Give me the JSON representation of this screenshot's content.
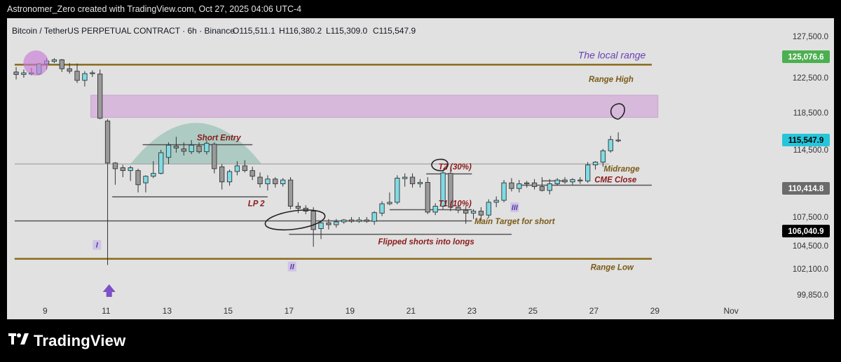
{
  "header": {
    "attribution": "Astronomer_Zero created with TradingView.com, Oct 27, 2025 04:06 UTC-4"
  },
  "legend": {
    "symbol": "Bitcoin / TetherUS PERPETUAL CONTRACT · 6h · Binance",
    "open": "O115,511.1",
    "high": "H116,380.2",
    "low": "L115,309.0",
    "close": "C115,547.9"
  },
  "footer": {
    "brand": "TradingView"
  },
  "colors": {
    "bull": "#7fdbe4",
    "bear": "#9a9a9a",
    "range_line": "#8a6a1a",
    "zone_fill": "#d7b9db",
    "dome": "#a9c9c0",
    "level_line": "#6a6a6a",
    "label_brown": "#7a5a18",
    "label_red": "#8b1a1a",
    "label_purple": "#6a3fb5"
  },
  "chart_data": {
    "type": "candlestick",
    "timeframe": "6h",
    "x_tick_labels": [
      "9",
      "11",
      "13",
      "15",
      "17",
      "19",
      "21",
      "23",
      "25",
      "27",
      "29",
      "Nov"
    ],
    "y_tick_labels": [
      "127,500.0",
      "122,500.0",
      "118,500.0",
      "114,500.0",
      "107,500.0",
      "104,500.0",
      "102,100.0",
      "99,850.0"
    ],
    "y_range": [
      99000,
      128500
    ],
    "price_badges": [
      {
        "value": "125,076.6",
        "color": "#4caf50",
        "text_color": "#ffffff"
      },
      {
        "value": "115,547.9",
        "color": "#26c6da",
        "text_color": "#000000"
      },
      {
        "value": "110,414.8",
        "color": "#6b6b6b",
        "text_color": "#ffffff"
      },
      {
        "value": "106,040.9",
        "color": "#000000",
        "text_color": "#ffffff"
      }
    ],
    "levels": [
      {
        "name": "Range High",
        "price": 124100,
        "x0": 8.0,
        "x1": 28.9,
        "style": "range"
      },
      {
        "name": "Range Low",
        "price": 103150,
        "x0": 8.0,
        "x1": 28.9,
        "style": "range"
      },
      {
        "name": "Midrange",
        "price": 113000,
        "x0": 8.0,
        "x1": 27.5,
        "style": "gray"
      },
      {
        "name": "Short Entry",
        "price": 115050,
        "x0": 12.2,
        "x1": 15.8,
        "style": "dark"
      },
      {
        "name": "LP 2",
        "price": 109550,
        "x0": 11.2,
        "x1": 16.3,
        "style": "dark"
      },
      {
        "name": "support",
        "price": 107100,
        "x0": 8.0,
        "x1": 23.0,
        "style": "dark"
      },
      {
        "name": "Flipped shorts into longs",
        "price": 105700,
        "x0": 17.0,
        "x1": 24.3,
        "style": "dark"
      },
      {
        "name": "T2 (30%)",
        "price": 111950,
        "x0": 21.5,
        "x1": 23.0,
        "style": "dark"
      },
      {
        "name": "T1 (10%)",
        "price": 108250,
        "x0": 20.3,
        "x1": 23.0,
        "style": "dark"
      },
      {
        "name": "CME Close",
        "price": 110750,
        "x0": 24.5,
        "x1": 28.9,
        "style": "dark"
      },
      {
        "name": "cme-small",
        "price": 111200,
        "x0": 25.3,
        "x1": 26.0,
        "style": "dark"
      }
    ],
    "zones": [
      {
        "name": "supply-zone",
        "x0": 10.5,
        "x1": 29.1,
        "y0": 118000,
        "y1": 120500
      }
    ],
    "annotations": [
      {
        "text": "The local range",
        "x": 28.7,
        "price": 125200,
        "color": "purple",
        "size": 14,
        "anchor": "end"
      },
      {
        "text": "Range High",
        "x": 28.3,
        "price": 122350,
        "color": "brown",
        "size": 11.5,
        "anchor": "end"
      },
      {
        "text": "Short Entry",
        "x": 14.7,
        "price": 115800,
        "color": "red",
        "size": 11.5,
        "anchor": "middle"
      },
      {
        "text": "Midrange",
        "x": 28.5,
        "price": 112500,
        "color": "brown",
        "size": 11.5,
        "anchor": "end"
      },
      {
        "text": "CME Close",
        "x": 28.4,
        "price": 111350,
        "color": "red",
        "size": 11.5,
        "anchor": "end"
      },
      {
        "text": "T2 (30%)",
        "x": 21.9,
        "price": 112700,
        "color": "red",
        "size": 11.5,
        "anchor": "start"
      },
      {
        "text": "LP 2",
        "x": 16.2,
        "price": 108900,
        "color": "red",
        "size": 11.5,
        "anchor": "end"
      },
      {
        "text": "T1 (10%)",
        "x": 21.9,
        "price": 108900,
        "color": "red",
        "size": 11.5,
        "anchor": "start"
      },
      {
        "text": "Main Target for short",
        "x": 24.4,
        "price": 107050,
        "color": "brown",
        "size": 11.5,
        "anchor": "middle"
      },
      {
        "text": "Flipped shorts into longs",
        "x": 21.5,
        "price": 104950,
        "color": "red",
        "size": 11.5,
        "anchor": "middle"
      },
      {
        "text": "Range Low",
        "x": 28.3,
        "price": 102300,
        "color": "brown",
        "size": 11.5,
        "anchor": "end"
      }
    ],
    "wave_labels": [
      {
        "text": "I",
        "x": 10.7,
        "price": 104450
      },
      {
        "text": "II",
        "x": 17.1,
        "price": 102200
      },
      {
        "text": "III",
        "x": 24.4,
        "price": 108350
      }
    ],
    "candles": [
      {
        "t": 8.05,
        "o": 123200,
        "h": 123800,
        "l": 122300,
        "c": 122900
      },
      {
        "t": 8.3,
        "o": 122900,
        "h": 123500,
        "l": 122500,
        "c": 123100
      },
      {
        "t": 8.55,
        "o": 123100,
        "h": 123700,
        "l": 122800,
        "c": 122950
      },
      {
        "t": 8.8,
        "o": 122950,
        "h": 124300,
        "l": 122800,
        "c": 124200
      },
      {
        "t": 9.05,
        "o": 124200,
        "h": 124900,
        "l": 123500,
        "c": 124550
      },
      {
        "t": 9.3,
        "o": 124500,
        "h": 124900,
        "l": 124300,
        "c": 124700
      },
      {
        "t": 9.55,
        "o": 124700,
        "h": 124800,
        "l": 123200,
        "c": 123600
      },
      {
        "t": 9.8,
        "o": 123600,
        "h": 124300,
        "l": 123000,
        "c": 123300
      },
      {
        "t": 10.05,
        "o": 123300,
        "h": 124250,
        "l": 121900,
        "c": 122200
      },
      {
        "t": 10.3,
        "o": 122200,
        "h": 123300,
        "l": 121500,
        "c": 123000
      },
      {
        "t": 10.55,
        "o": 123050,
        "h": 123400,
        "l": 122600,
        "c": 123100
      },
      {
        "t": 10.8,
        "o": 122950,
        "h": 123500,
        "l": 117800,
        "c": 117900
      },
      {
        "t": 11.05,
        "o": 117600,
        "h": 117800,
        "l": 102500,
        "c": 113100
      },
      {
        "t": 11.3,
        "o": 113100,
        "h": 113200,
        "l": 110800,
        "c": 112500
      },
      {
        "t": 11.55,
        "o": 112600,
        "h": 112900,
        "l": 111600,
        "c": 112300
      },
      {
        "t": 11.8,
        "o": 112300,
        "h": 112800,
        "l": 111200,
        "c": 112600
      },
      {
        "t": 12.05,
        "o": 112300,
        "h": 112500,
        "l": 110000,
        "c": 110800
      },
      {
        "t": 12.3,
        "o": 111000,
        "h": 111800,
        "l": 110000,
        "c": 111700
      },
      {
        "t": 12.55,
        "o": 111700,
        "h": 113300,
        "l": 111500,
        "c": 112000
      },
      {
        "t": 12.8,
        "o": 112000,
        "h": 114500,
        "l": 111900,
        "c": 114200
      },
      {
        "t": 13.05,
        "o": 113700,
        "h": 115300,
        "l": 113000,
        "c": 115000
      },
      {
        "t": 13.3,
        "o": 114900,
        "h": 115900,
        "l": 114200,
        "c": 114700
      },
      {
        "t": 13.55,
        "o": 114600,
        "h": 115300,
        "l": 113900,
        "c": 114350
      },
      {
        "t": 13.8,
        "o": 114300,
        "h": 115550,
        "l": 114050,
        "c": 115000
      },
      {
        "t": 14.05,
        "o": 114900,
        "h": 115300,
        "l": 114100,
        "c": 114300
      },
      {
        "t": 14.3,
        "o": 114300,
        "h": 115500,
        "l": 114000,
        "c": 115200
      },
      {
        "t": 14.55,
        "o": 115100,
        "h": 115300,
        "l": 112000,
        "c": 112500
      },
      {
        "t": 14.8,
        "o": 112700,
        "h": 113000,
        "l": 110300,
        "c": 111100
      },
      {
        "t": 15.05,
        "o": 111100,
        "h": 112400,
        "l": 110700,
        "c": 112200
      },
      {
        "t": 15.3,
        "o": 112200,
        "h": 113300,
        "l": 111800,
        "c": 112800
      },
      {
        "t": 15.55,
        "o": 112800,
        "h": 113400,
        "l": 112100,
        "c": 112300
      },
      {
        "t": 15.8,
        "o": 112300,
        "h": 112700,
        "l": 111300,
        "c": 111700
      },
      {
        "t": 16.05,
        "o": 111600,
        "h": 112100,
        "l": 110500,
        "c": 110900
      },
      {
        "t": 16.3,
        "o": 110900,
        "h": 111800,
        "l": 110200,
        "c": 111400
      },
      {
        "t": 16.55,
        "o": 111400,
        "h": 111600,
        "l": 110500,
        "c": 110900
      },
      {
        "t": 16.8,
        "o": 110900,
        "h": 111500,
        "l": 110600,
        "c": 111300
      },
      {
        "t": 17.05,
        "o": 111300,
        "h": 111600,
        "l": 108300,
        "c": 108600
      },
      {
        "t": 17.3,
        "o": 108600,
        "h": 109000,
        "l": 107900,
        "c": 108400
      },
      {
        "t": 17.55,
        "o": 108400,
        "h": 108700,
        "l": 107800,
        "c": 108100
      },
      {
        "t": 17.8,
        "o": 108100,
        "h": 108500,
        "l": 104400,
        "c": 106200
      },
      {
        "t": 18.05,
        "o": 106300,
        "h": 107100,
        "l": 105200,
        "c": 106900
      },
      {
        "t": 18.3,
        "o": 106900,
        "h": 107300,
        "l": 106200,
        "c": 106700
      },
      {
        "t": 18.55,
        "o": 106700,
        "h": 107300,
        "l": 106400,
        "c": 107000
      },
      {
        "t": 18.8,
        "o": 107000,
        "h": 107300,
        "l": 106800,
        "c": 107200
      },
      {
        "t": 19.05,
        "o": 107200,
        "h": 107500,
        "l": 106900,
        "c": 107050
      },
      {
        "t": 19.3,
        "o": 107050,
        "h": 107500,
        "l": 106900,
        "c": 107200
      },
      {
        "t": 19.55,
        "o": 107200,
        "h": 107500,
        "l": 106900,
        "c": 107050
      },
      {
        "t": 19.8,
        "o": 107050,
        "h": 108100,
        "l": 106700,
        "c": 107950
      },
      {
        "t": 20.05,
        "o": 107900,
        "h": 109100,
        "l": 107600,
        "c": 108850
      },
      {
        "t": 20.3,
        "o": 108850,
        "h": 110000,
        "l": 108700,
        "c": 109000
      },
      {
        "t": 20.55,
        "o": 109000,
        "h": 111800,
        "l": 108800,
        "c": 111500
      },
      {
        "t": 20.8,
        "o": 111450,
        "h": 112000,
        "l": 110600,
        "c": 111600
      },
      {
        "t": 21.05,
        "o": 111600,
        "h": 112000,
        "l": 110500,
        "c": 110900
      },
      {
        "t": 21.3,
        "o": 110900,
        "h": 111400,
        "l": 110500,
        "c": 111050
      },
      {
        "t": 21.55,
        "o": 111050,
        "h": 111600,
        "l": 107800,
        "c": 108000
      },
      {
        "t": 21.8,
        "o": 108000,
        "h": 108900,
        "l": 107700,
        "c": 108600
      },
      {
        "t": 22.05,
        "o": 108600,
        "h": 112300,
        "l": 108300,
        "c": 112050
      },
      {
        "t": 22.3,
        "o": 112000,
        "h": 112600,
        "l": 108100,
        "c": 108500
      },
      {
        "t": 22.55,
        "o": 108500,
        "h": 108700,
        "l": 107900,
        "c": 108200
      },
      {
        "t": 22.8,
        "o": 108200,
        "h": 108600,
        "l": 106800,
        "c": 107900
      },
      {
        "t": 23.05,
        "o": 107900,
        "h": 108300,
        "l": 107300,
        "c": 108100
      },
      {
        "t": 23.3,
        "o": 108100,
        "h": 108500,
        "l": 107100,
        "c": 107700
      },
      {
        "t": 23.55,
        "o": 107700,
        "h": 109300,
        "l": 107400,
        "c": 109000
      },
      {
        "t": 23.8,
        "o": 109000,
        "h": 109600,
        "l": 108500,
        "c": 109200
      },
      {
        "t": 24.05,
        "o": 109200,
        "h": 111300,
        "l": 109000,
        "c": 111000
      },
      {
        "t": 24.3,
        "o": 111000,
        "h": 111500,
        "l": 110100,
        "c": 110400
      },
      {
        "t": 24.55,
        "o": 110400,
        "h": 111300,
        "l": 110000,
        "c": 110900
      },
      {
        "t": 24.8,
        "o": 110900,
        "h": 111200,
        "l": 110500,
        "c": 111000
      },
      {
        "t": 25.05,
        "o": 111000,
        "h": 111400,
        "l": 110300,
        "c": 110600
      },
      {
        "t": 25.3,
        "o": 110600,
        "h": 111600,
        "l": 110100,
        "c": 110200
      },
      {
        "t": 25.55,
        "o": 110200,
        "h": 111400,
        "l": 109800,
        "c": 110900
      },
      {
        "t": 25.8,
        "o": 110900,
        "h": 111500,
        "l": 110700,
        "c": 111300
      },
      {
        "t": 26.05,
        "o": 111300,
        "h": 111600,
        "l": 110900,
        "c": 111100
      },
      {
        "t": 26.3,
        "o": 111100,
        "h": 111500,
        "l": 110800,
        "c": 111350
      },
      {
        "t": 26.55,
        "o": 111300,
        "h": 111600,
        "l": 110900,
        "c": 111200
      },
      {
        "t": 26.8,
        "o": 111200,
        "h": 113200,
        "l": 111000,
        "c": 112900
      },
      {
        "t": 27.05,
        "o": 112900,
        "h": 113300,
        "l": 112400,
        "c": 113200
      },
      {
        "t": 27.3,
        "o": 113200,
        "h": 114600,
        "l": 112700,
        "c": 114400
      },
      {
        "t": 27.55,
        "o": 114400,
        "h": 116000,
        "l": 114200,
        "c": 115600
      },
      {
        "t": 27.8,
        "o": 115511,
        "h": 116380,
        "l": 115309,
        "c": 115548
      }
    ]
  }
}
